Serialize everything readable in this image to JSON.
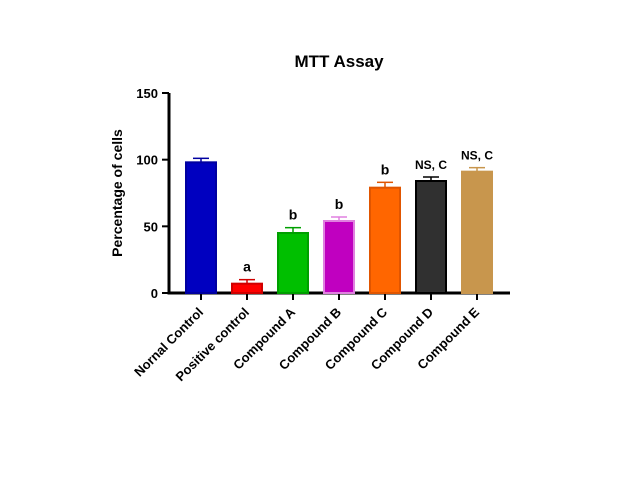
{
  "chart_data": {
    "type": "bar",
    "title": "MTT Assay",
    "xlabel": "",
    "ylabel": "Percentage of cells",
    "ylim": [
      0,
      150
    ],
    "yticks": [
      0,
      50,
      100,
      150
    ],
    "grid": false,
    "categories": [
      "Nornal Control",
      "Positive control",
      "Compound A",
      "Compound B",
      "Compound C",
      "Compound D",
      "Compound E"
    ],
    "values": [
      98,
      7,
      45,
      54,
      79,
      84,
      91
    ],
    "errors": [
      3,
      3,
      4,
      3,
      4,
      3,
      3
    ],
    "annotations": [
      "",
      "a",
      "b",
      "b",
      "b",
      "NS, C",
      "NS, C"
    ],
    "colors": [
      "#0000c0",
      "#ff0000",
      "#00bf00",
      "#c000c0",
      "#ff6600",
      "#303030",
      "#c8964d"
    ],
    "edge_colors": [
      "#0000a0",
      "#d00000",
      "#009f00",
      "#e080e0",
      "#e05500",
      "#000000",
      "#c8964d"
    ]
  }
}
